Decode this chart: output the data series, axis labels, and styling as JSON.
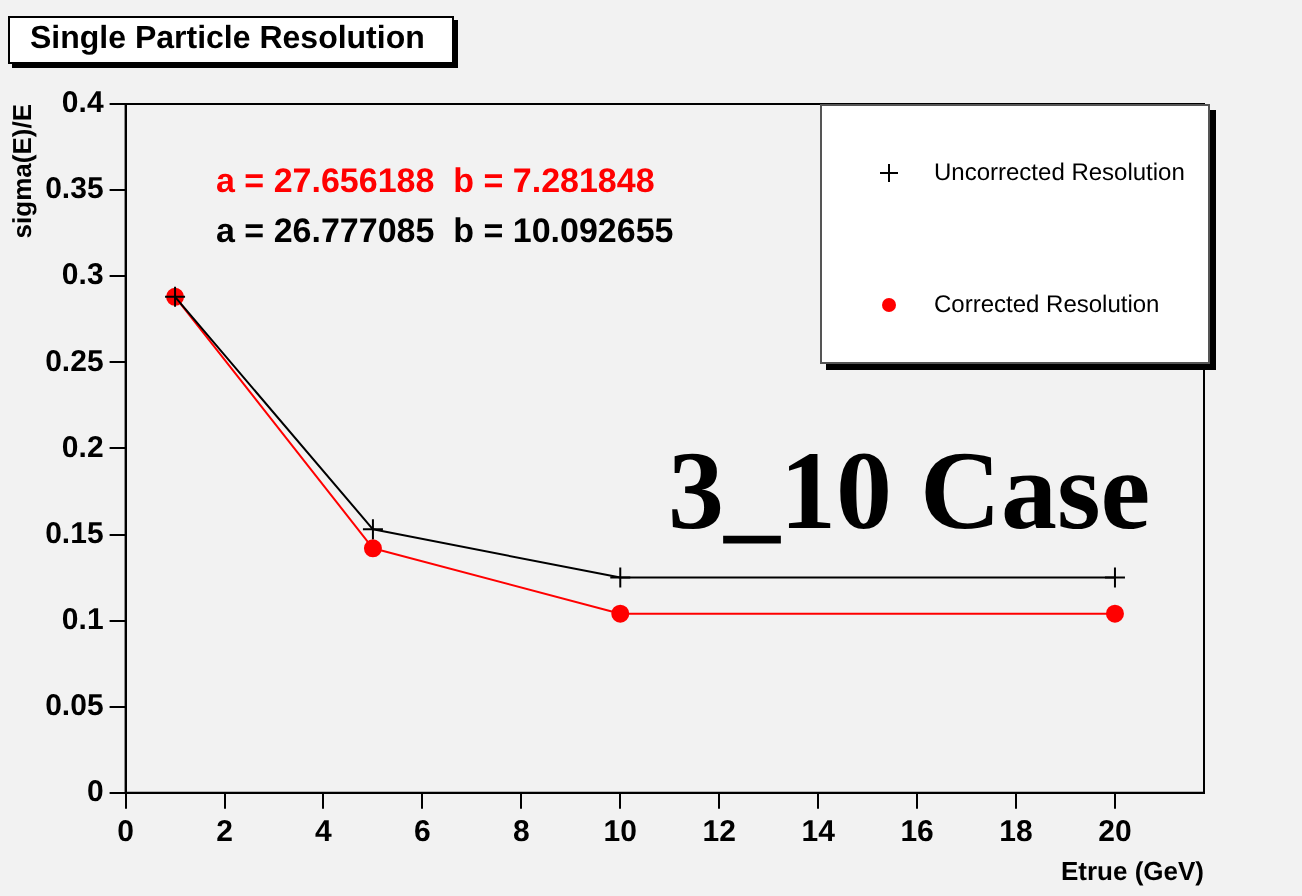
{
  "chart_data": {
    "type": "line",
    "title": "Single Particle Resolution",
    "xlabel": "Etrue (GeV)",
    "ylabel": "sigma(E)/E",
    "x": [
      1,
      5,
      10,
      20
    ],
    "series": [
      {
        "name": "Uncorrected Resolution",
        "color": "#000000",
        "marker": "cross",
        "values": [
          0.288,
          0.153,
          0.125,
          0.125
        ]
      },
      {
        "name": "Corrected Resolution",
        "color": "#ff0000",
        "marker": "circle",
        "values": [
          0.288,
          0.142,
          0.104,
          0.104
        ]
      }
    ],
    "xlim": [
      0,
      21.8
    ],
    "xticks": [
      0,
      2,
      4,
      6,
      8,
      10,
      12,
      14,
      16,
      18,
      20
    ],
    "ylim": [
      0,
      0.4
    ],
    "yticks": [
      0,
      0.05,
      0.1,
      0.15,
      0.2,
      0.25,
      0.3,
      0.35,
      0.4
    ],
    "grid": false,
    "legend": "top right",
    "line_style": "solid",
    "annotations": [
      "a = 27.656188  b = 7.281848",
      "a = 26.777085  b = 10.092655",
      "3_10 Case"
    ]
  }
}
